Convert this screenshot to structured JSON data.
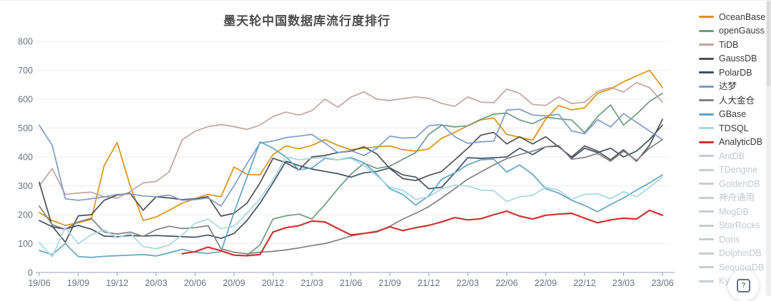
{
  "title": "墨天轮中国数据库流行度排行",
  "help_button": {
    "label": "?"
  },
  "colors": {
    "title_text": "#4d4d4d",
    "grid_line": "#e8edf3",
    "axis_line": "#98a2ad",
    "tick_text": "#6b7280",
    "disabled_legend": "#c8ccd3"
  },
  "chart_data": {
    "type": "line",
    "title": "墨天轮中国数据库流行度排行",
    "xlabel": "",
    "ylabel": "",
    "ylim": [
      0,
      800
    ],
    "y_ticks": [
      0,
      100,
      200,
      300,
      400,
      500,
      600,
      700,
      800
    ],
    "grid": true,
    "legend_position": "right",
    "x_tick_labels": [
      "19/06",
      "19/09",
      "19/12",
      "20/03",
      "20/06",
      "20/09",
      "20/12",
      "21/03",
      "21/06",
      "21/09",
      "21/12",
      "22/03",
      "22/06",
      "22/09",
      "22/12",
      "23/03",
      "23/06"
    ],
    "months": [
      "19/06",
      "19/07",
      "19/08",
      "19/09",
      "19/10",
      "19/11",
      "19/12",
      "20/01",
      "20/02",
      "20/03",
      "20/04",
      "20/05",
      "20/06",
      "20/07",
      "20/08",
      "20/09",
      "20/10",
      "20/11",
      "20/12",
      "21/01",
      "21/02",
      "21/03",
      "21/04",
      "21/05",
      "21/06",
      "21/07",
      "21/08",
      "21/09",
      "21/10",
      "21/11",
      "21/12",
      "22/01",
      "22/02",
      "22/03",
      "22/04",
      "22/05",
      "22/06",
      "22/07",
      "22/08",
      "22/09",
      "22/10",
      "22/11",
      "22/12",
      "23/01",
      "23/02",
      "23/03",
      "23/04",
      "23/05",
      "23/06"
    ],
    "series": [
      {
        "name": "OceanBase",
        "color": "#e09112",
        "enabled": true,
        "values": [
          208,
          180,
          163,
          172,
          184,
          370,
          450,
          300,
          180,
          192,
          215,
          240,
          255,
          270,
          262,
          365,
          340,
          338,
          408,
          438,
          428,
          440,
          460,
          440,
          425,
          430,
          435,
          438,
          425,
          420,
          428,
          465,
          485,
          508,
          528,
          535,
          478,
          468,
          458,
          530,
          578,
          563,
          570,
          620,
          635,
          660,
          680,
          700,
          640
        ]
      },
      {
        "name": "openGauss",
        "color": "#6e9c7e",
        "enabled": true,
        "values": [
          null,
          null,
          null,
          null,
          null,
          null,
          null,
          null,
          null,
          null,
          null,
          null,
          null,
          null,
          null,
          null,
          60,
          95,
          185,
          196,
          202,
          185,
          235,
          290,
          340,
          378,
          360,
          368,
          392,
          415,
          478,
          510,
          504,
          508,
          530,
          548,
          552,
          528,
          515,
          537,
          532,
          528,
          484,
          540,
          580,
          510,
          548,
          592,
          620
        ]
      },
      {
        "name": "TiDB",
        "color": "#c4a6a1",
        "enabled": true,
        "values": [
          300,
          360,
          270,
          275,
          278,
          262,
          257,
          280,
          310,
          315,
          348,
          459,
          489,
          505,
          512,
          505,
          495,
          510,
          540,
          555,
          545,
          560,
          600,
          572,
          607,
          625,
          600,
          595,
          602,
          608,
          603,
          585,
          575,
          608,
          590,
          588,
          635,
          620,
          582,
          578,
          608,
          585,
          590,
          627,
          640,
          625,
          657,
          640,
          590
        ]
      },
      {
        "name": "GaussDB",
        "color": "#515151",
        "enabled": true,
        "values": [
          312,
          160,
          105,
          196,
          200,
          250,
          268,
          274,
          215,
          262,
          258,
          252,
          255,
          262,
          195,
          205,
          240,
          310,
          395,
          380,
          355,
          400,
          405,
          415,
          420,
          435,
          410,
          360,
          325,
          318,
          336,
          350,
          390,
          430,
          475,
          485,
          445,
          470,
          445,
          470,
          435,
          400,
          438,
          420,
          390,
          425,
          385,
          440,
          530
        ]
      },
      {
        "name": "PolarDB",
        "color": "#3f5266",
        "enabled": true,
        "values": [
          180,
          158,
          150,
          163,
          150,
          126,
          124,
          128,
          126,
          128,
          126,
          124,
          122,
          130,
          118,
          135,
          180,
          240,
          310,
          385,
          370,
          358,
          350,
          342,
          330,
          345,
          350,
          362,
          338,
          330,
          290,
          295,
          345,
          397,
          395,
          397,
          400,
          430,
          408,
          435,
          437,
          395,
          430,
          415,
          430,
          400,
          420,
          460,
          510
        ]
      },
      {
        "name": "达梦",
        "color": "#809bc9",
        "enabled": true,
        "values": [
          510,
          440,
          255,
          250,
          255,
          262,
          270,
          272,
          265,
          262,
          268,
          250,
          252,
          258,
          230,
          300,
          377,
          448,
          455,
          467,
          472,
          478,
          448,
          415,
          422,
          405,
          430,
          472,
          465,
          467,
          508,
          512,
          470,
          447,
          452,
          455,
          562,
          565,
          545,
          542,
          548,
          490,
          480,
          529,
          504,
          550,
          520,
          490,
          460
        ]
      },
      {
        "name": "人大金仓",
        "color": "#828282",
        "enabled": true,
        "values": [
          230,
          165,
          150,
          175,
          188,
          140,
          133,
          140,
          125,
          148,
          160,
          152,
          155,
          162,
          82,
          70,
          65,
          70,
          73,
          78,
          85,
          93,
          100,
          112,
          126,
          135,
          140,
          160,
          185,
          205,
          228,
          258,
          290,
          323,
          348,
          372,
          394,
          408,
          420,
          435,
          440,
          392,
          398,
          412,
          385,
          420,
          388,
          430,
          460
        ]
      },
      {
        "name": "GBase",
        "color": "#61a5c4",
        "enabled": true,
        "values": [
          76,
          62,
          100,
          55,
          52,
          56,
          58,
          60,
          62,
          57,
          68,
          80,
          70,
          66,
          72,
          208,
          330,
          452,
          430,
          400,
          355,
          362,
          395,
          390,
          398,
          380,
          340,
          290,
          270,
          233,
          265,
          323,
          345,
          373,
          390,
          392,
          348,
          372,
          340,
          290,
          275,
          250,
          232,
          210,
          235,
          258,
          285,
          310,
          338
        ]
      },
      {
        "name": "TDSQL",
        "color": "#a5d8df",
        "enabled": true,
        "values": [
          103,
          55,
          155,
          100,
          130,
          148,
          120,
          135,
          90,
          82,
          95,
          130,
          170,
          185,
          152,
          160,
          205,
          255,
          320,
          400,
          390,
          395,
          398,
          390,
          395,
          370,
          335,
          295,
          285,
          253,
          262,
          290,
          303,
          299,
          285,
          283,
          246,
          262,
          267,
          295,
          285,
          253,
          270,
          272,
          255,
          280,
          262,
          295,
          330
        ]
      },
      {
        "name": "AnalyticDB",
        "color": "#d0342f",
        "enabled": true,
        "values": [
          null,
          null,
          null,
          null,
          null,
          null,
          null,
          null,
          null,
          null,
          null,
          65,
          72,
          88,
          75,
          60,
          58,
          62,
          140,
          155,
          162,
          178,
          175,
          152,
          130,
          135,
          142,
          158,
          145,
          155,
          163,
          175,
          190,
          182,
          186,
          200,
          212,
          195,
          185,
          198,
          202,
          205,
          188,
          172,
          182,
          188,
          185,
          215,
          198
        ]
      },
      {
        "name": "AntDB",
        "color": "#c8ccd3",
        "enabled": false,
        "values": null
      },
      {
        "name": "TDengine",
        "color": "#c8ccd3",
        "enabled": false,
        "values": null
      },
      {
        "name": "GoldenDB",
        "color": "#c8ccd3",
        "enabled": false,
        "values": null
      },
      {
        "name": "神舟通用",
        "color": "#c8ccd3",
        "enabled": false,
        "values": null
      },
      {
        "name": "MogDB",
        "color": "#c8ccd3",
        "enabled": false,
        "values": null
      },
      {
        "name": "StarRocks",
        "color": "#c8ccd3",
        "enabled": false,
        "values": null
      },
      {
        "name": "Doris",
        "color": "#c8ccd3",
        "enabled": false,
        "values": null
      },
      {
        "name": "DolphinDB",
        "color": "#c8ccd3",
        "enabled": false,
        "values": null
      },
      {
        "name": "SequoiaDB",
        "color": "#c8ccd3",
        "enabled": false,
        "values": null
      },
      {
        "name": "Kyligence",
        "color": "#c8ccd3",
        "enabled": false,
        "values": null
      }
    ]
  }
}
